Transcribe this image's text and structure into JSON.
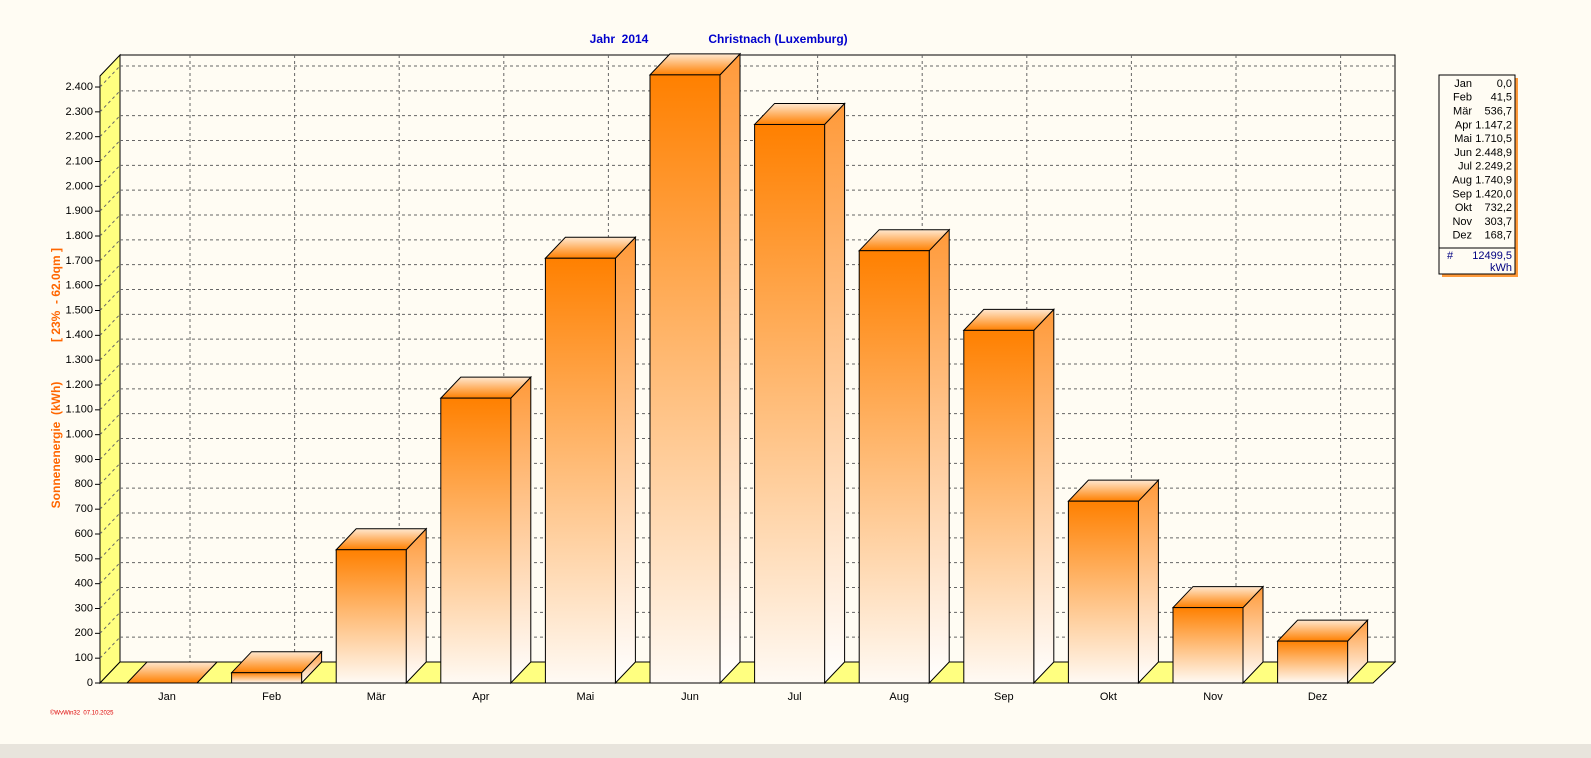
{
  "chart_data": {
    "type": "bar3d",
    "title": "Jahr  2014",
    "subtitle": "Christnach (Luxemburg)",
    "y_label": "Sonnenenergie  (kWh)",
    "y_label_note": "[ 23%  - 62.0qm ]",
    "footer": "©WvWin32  07.10.2025",
    "categories": [
      "Jan",
      "Feb",
      "Mär",
      "Apr",
      "Mai",
      "Jun",
      "Jul",
      "Aug",
      "Sep",
      "Okt",
      "Nov",
      "Dez"
    ],
    "values": [
      0.0,
      41.5,
      536.7,
      1147.2,
      1710.5,
      2448.9,
      2249.2,
      1740.9,
      1420.0,
      732.2,
      303.7,
      168.7
    ],
    "value_labels": [
      "0,0",
      "41,5",
      "536,7",
      "1.147,2",
      "1.710,5",
      "2.448,9",
      "2.249,2",
      "1.740,9",
      "1.420,0",
      "732,2",
      "303,7",
      "168,7"
    ],
    "total_symbol": "#",
    "total": "12499,5",
    "unit": "kWh",
    "color": "#ff8000",
    "ylim": [
      0,
      2450
    ],
    "yticks": [
      0,
      100,
      200,
      300,
      400,
      500,
      600,
      700,
      800,
      900,
      {
        "value": 1000,
        "label": "1.000"
      },
      {
        "value": 1100,
        "label": "1.100"
      },
      {
        "value": 1200,
        "label": "1.200"
      },
      {
        "value": 1300,
        "label": "1.300"
      },
      {
        "value": 1400,
        "label": "1.400"
      },
      {
        "value": 1500,
        "label": "1.500"
      },
      {
        "value": 1600,
        "label": "1.600"
      },
      {
        "value": 1700,
        "label": "1.700"
      },
      {
        "value": 1800,
        "label": "1.800"
      },
      {
        "value": 1900,
        "label": "1.900"
      },
      {
        "value": 2000,
        "label": "2.000"
      },
      {
        "value": 2100,
        "label": "2.100"
      },
      {
        "value": 2200,
        "label": "2.200"
      },
      {
        "value": 2300,
        "label": "2.300"
      },
      {
        "value": 2400,
        "label": "2.400"
      }
    ],
    "grid": true
  }
}
